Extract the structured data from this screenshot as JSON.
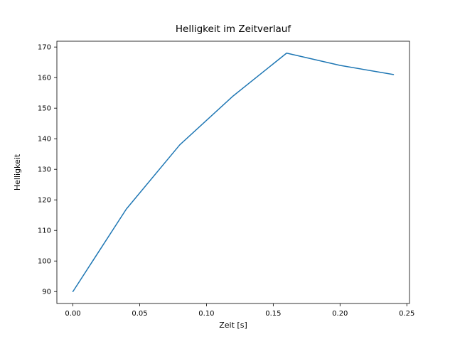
{
  "chart_data": {
    "type": "line",
    "title": "Helligkeit im Zeitverlauf",
    "xlabel": "Zeit [s]",
    "ylabel": "Helligkeit",
    "x": [
      0.0,
      0.04,
      0.08,
      0.12,
      0.16,
      0.2,
      0.24
    ],
    "y": [
      90,
      117,
      138,
      154,
      168,
      164,
      161
    ],
    "xlim": [
      -0.012,
      0.252
    ],
    "ylim": [
      86.1,
      171.9
    ],
    "xticks": [
      0.0,
      0.05,
      0.1,
      0.15,
      0.2,
      0.25
    ],
    "xtick_labels": [
      "0.00",
      "0.05",
      "0.10",
      "0.15",
      "0.20",
      "0.25"
    ],
    "yticks": [
      90,
      100,
      110,
      120,
      130,
      140,
      150,
      160,
      170
    ],
    "ytick_labels": [
      "90",
      "100",
      "110",
      "120",
      "130",
      "140",
      "150",
      "160",
      "170"
    ],
    "line_color": "#1f77b4",
    "line_width": 1.5,
    "axis_color": "#000000",
    "background_color": "#ffffff",
    "grid": false,
    "legend_position": "none"
  }
}
